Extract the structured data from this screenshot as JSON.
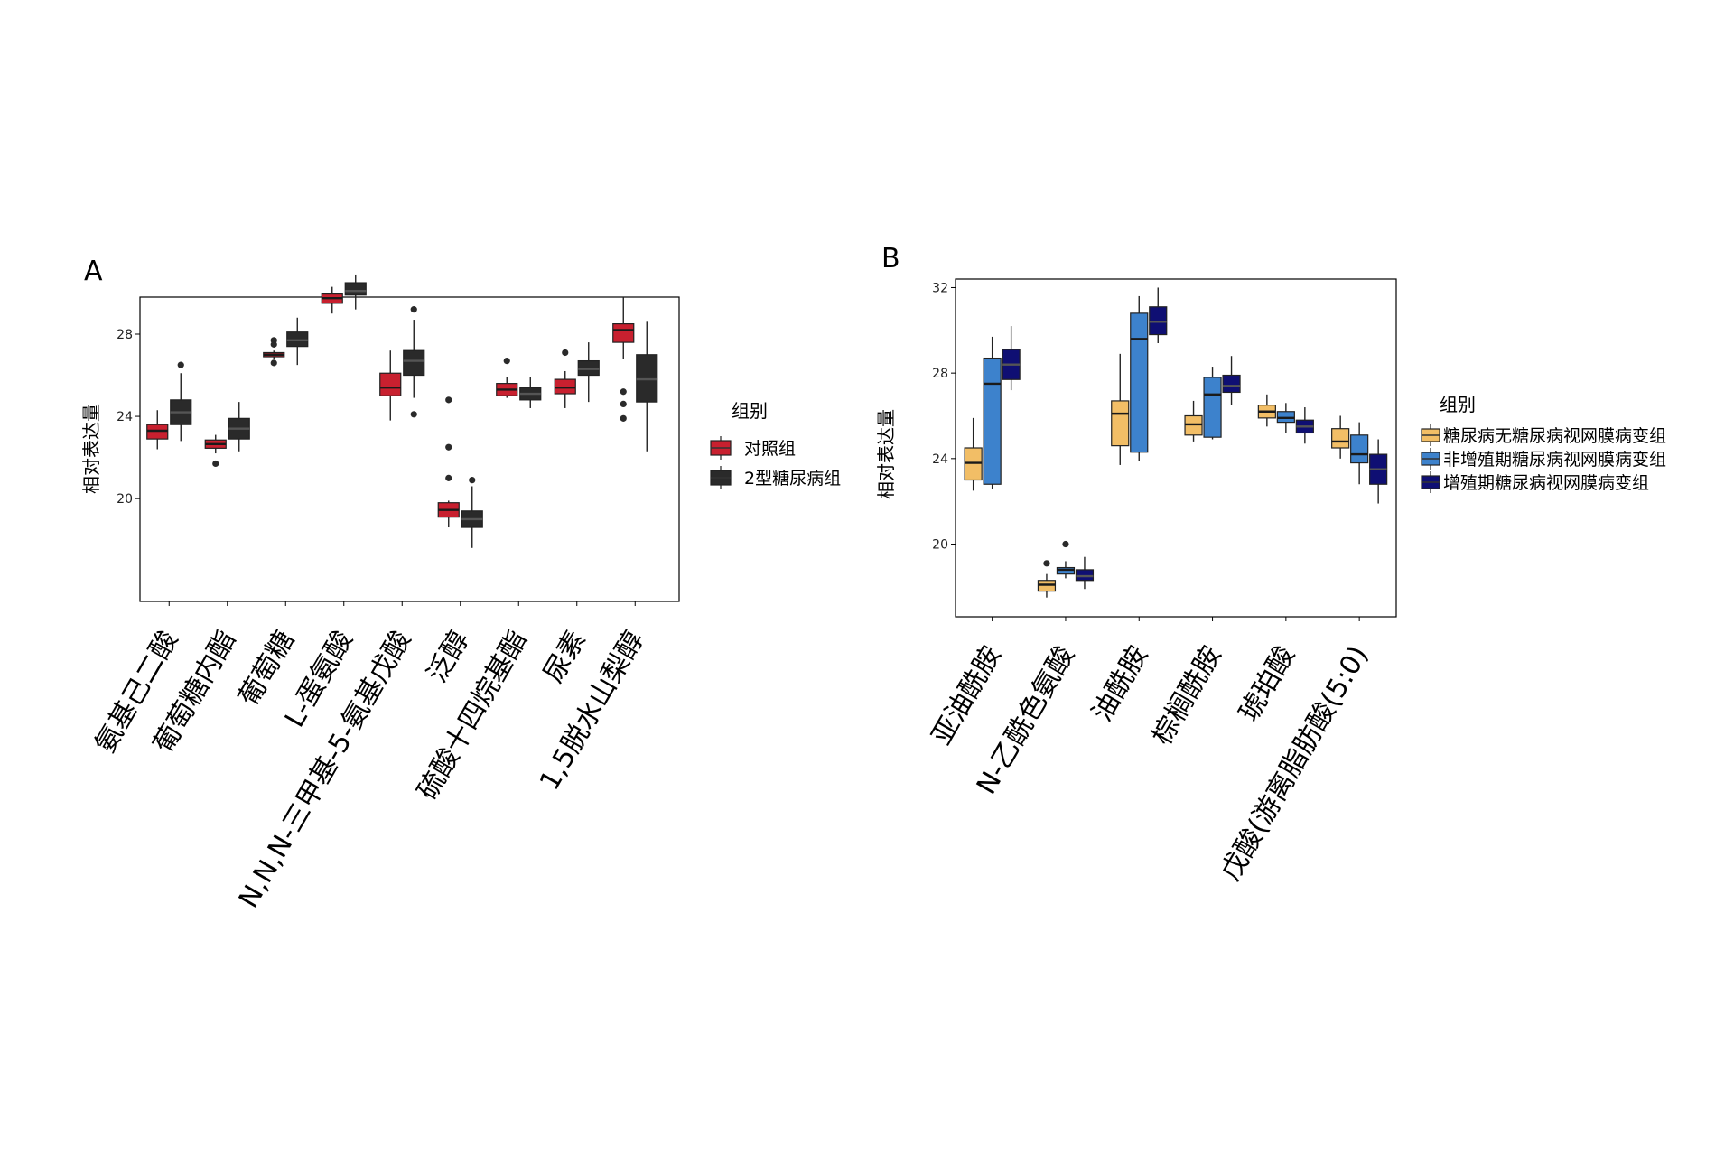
{
  "chart_data": [
    {
      "panel_label": "A",
      "type": "boxplot",
      "ylabel": "相对表达量",
      "ylim": [
        15.0,
        29.8
      ],
      "yticks": [
        20,
        24,
        28
      ],
      "categories": [
        "氨基己二酸",
        "葡萄糖内酯",
        "葡萄糖",
        "L-蛋氨酸",
        "N,N,N-三甲基-5-氨基戊酸",
        "泛醇",
        "硫酸十四烷基酯",
        "尿素",
        "1,5脱水山梨醇"
      ],
      "legend": {
        "title": "组别",
        "position": "right"
      },
      "series": [
        {
          "name": "对照组",
          "color": "#c8202f",
          "boxes": [
            {
              "min": 22.4,
              "q1": 22.9,
              "median": 23.3,
              "q3": 23.6,
              "max": 24.3,
              "outliers": []
            },
            {
              "min": 22.2,
              "q1": 22.45,
              "median": 22.65,
              "q3": 22.85,
              "max": 23.1,
              "outliers": [
                21.7
              ]
            },
            {
              "min": 26.8,
              "q1": 26.9,
              "median": 27.0,
              "q3": 27.1,
              "max": 27.2,
              "outliers": [
                27.5,
                27.7,
                26.6
              ]
            },
            {
              "min": 29.0,
              "q1": 29.5,
              "median": 29.75,
              "q3": 29.95,
              "max": 30.3,
              "outliers": []
            },
            {
              "min": 23.8,
              "q1": 25.0,
              "median": 25.4,
              "q3": 26.1,
              "max": 27.2,
              "outliers": []
            },
            {
              "min": 18.6,
              "q1": 19.1,
              "median": 19.45,
              "q3": 19.8,
              "max": 19.9,
              "outliers": [
                24.8,
                22.5,
                21.0
              ]
            },
            {
              "min": 24.9,
              "q1": 25.0,
              "median": 25.3,
              "q3": 25.6,
              "max": 25.9,
              "outliers": [
                26.7
              ]
            },
            {
              "min": 24.4,
              "q1": 25.1,
              "median": 25.4,
              "q3": 25.8,
              "max": 26.2,
              "outliers": [
                27.1
              ]
            },
            {
              "min": 26.8,
              "q1": 27.6,
              "median": 28.2,
              "q3": 28.5,
              "max": 29.8,
              "outliers": [
                25.2,
                24.6,
                23.9
              ]
            }
          ]
        },
        {
          "name": "2型糖尿病组",
          "color": "#2a2a2a",
          "boxes": [
            {
              "min": 22.8,
              "q1": 23.6,
              "median": 24.2,
              "q3": 24.8,
              "max": 26.1,
              "outliers": [
                26.5
              ]
            },
            {
              "min": 22.3,
              "q1": 22.9,
              "median": 23.4,
              "q3": 23.9,
              "max": 24.7,
              "outliers": []
            },
            {
              "min": 26.5,
              "q1": 27.4,
              "median": 27.7,
              "q3": 28.1,
              "max": 28.8,
              "outliers": []
            },
            {
              "min": 29.2,
              "q1": 29.9,
              "median": 30.1,
              "q3": 30.5,
              "max": 30.9,
              "outliers": []
            },
            {
              "min": 24.9,
              "q1": 26.0,
              "median": 26.7,
              "q3": 27.2,
              "max": 28.7,
              "outliers": [
                29.2,
                24.1
              ]
            },
            {
              "min": 17.6,
              "q1": 18.6,
              "median": 19.0,
              "q3": 19.4,
              "max": 20.6,
              "outliers": [
                20.9
              ]
            },
            {
              "min": 24.4,
              "q1": 24.8,
              "median": 25.1,
              "q3": 25.4,
              "max": 25.9,
              "outliers": []
            },
            {
              "min": 24.7,
              "q1": 26.0,
              "median": 26.3,
              "q3": 26.7,
              "max": 27.6,
              "outliers": []
            },
            {
              "min": 22.3,
              "q1": 24.7,
              "median": 25.8,
              "q3": 27.0,
              "max": 28.6,
              "outliers": []
            }
          ]
        }
      ]
    },
    {
      "panel_label": "B",
      "type": "boxplot",
      "ylabel": "相对表达量",
      "ylim": [
        16.6,
        32.4
      ],
      "yticks": [
        20,
        24,
        28,
        32
      ],
      "categories": [
        "亚油酰胺",
        "N-乙酰色氨酸",
        "油酰胺",
        "棕榈酰胺",
        "琥珀酸",
        "戊酸(游离脂肪酸(5:0)"
      ],
      "legend": {
        "title": "组别",
        "position": "right"
      },
      "series": [
        {
          "name": "糖尿病无糖尿病视网膜病变组",
          "color": "#f2be66",
          "boxes": [
            {
              "min": 22.5,
              "q1": 23.0,
              "median": 23.8,
              "q3": 24.5,
              "max": 25.9,
              "outliers": []
            },
            {
              "min": 17.5,
              "q1": 17.8,
              "median": 18.1,
              "q3": 18.3,
              "max": 18.6,
              "outliers": [
                19.1
              ]
            },
            {
              "min": 23.7,
              "q1": 24.6,
              "median": 26.1,
              "q3": 26.7,
              "max": 28.9,
              "outliers": []
            },
            {
              "min": 24.8,
              "q1": 25.1,
              "median": 25.6,
              "q3": 26.0,
              "max": 26.7,
              "outliers": []
            },
            {
              "min": 25.5,
              "q1": 25.9,
              "median": 26.2,
              "q3": 26.5,
              "max": 27.0,
              "outliers": []
            },
            {
              "min": 24.0,
              "q1": 24.5,
              "median": 24.8,
              "q3": 25.4,
              "max": 26.0,
              "outliers": []
            }
          ]
        },
        {
          "name": "非增殖期糖尿病视网膜病变组",
          "color": "#3d82cc",
          "boxes": [
            {
              "min": 22.6,
              "q1": 22.8,
              "median": 27.5,
              "q3": 28.7,
              "max": 29.7,
              "outliers": []
            },
            {
              "min": 18.4,
              "q1": 18.6,
              "median": 18.8,
              "q3": 18.9,
              "max": 19.2,
              "outliers": [
                20.0
              ]
            },
            {
              "min": 23.9,
              "q1": 24.3,
              "median": 29.6,
              "q3": 30.8,
              "max": 31.6,
              "outliers": []
            },
            {
              "min": 24.9,
              "q1": 25.0,
              "median": 27.0,
              "q3": 27.8,
              "max": 28.3,
              "outliers": []
            },
            {
              "min": 25.2,
              "q1": 25.7,
              "median": 25.9,
              "q3": 26.2,
              "max": 26.6,
              "outliers": []
            },
            {
              "min": 22.8,
              "q1": 23.8,
              "median": 24.2,
              "q3": 25.1,
              "max": 25.7,
              "outliers": []
            }
          ]
        },
        {
          "name": "增殖期糖尿病视网膜病变组",
          "color": "#0f0f73",
          "boxes": [
            {
              "min": 27.2,
              "q1": 27.7,
              "median": 28.4,
              "q3": 29.1,
              "max": 30.2,
              "outliers": []
            },
            {
              "min": 17.9,
              "q1": 18.3,
              "median": 18.5,
              "q3": 18.8,
              "max": 19.4,
              "outliers": []
            },
            {
              "min": 29.4,
              "q1": 29.8,
              "median": 30.4,
              "q3": 31.1,
              "max": 32.0,
              "outliers": []
            },
            {
              "min": 26.5,
              "q1": 27.1,
              "median": 27.4,
              "q3": 27.9,
              "max": 28.8,
              "outliers": []
            },
            {
              "min": 24.7,
              "q1": 25.2,
              "median": 25.5,
              "q3": 25.8,
              "max": 26.4,
              "outliers": []
            },
            {
              "min": 21.9,
              "q1": 22.8,
              "median": 23.5,
              "q3": 24.2,
              "max": 24.9,
              "outliers": []
            }
          ]
        }
      ]
    }
  ]
}
